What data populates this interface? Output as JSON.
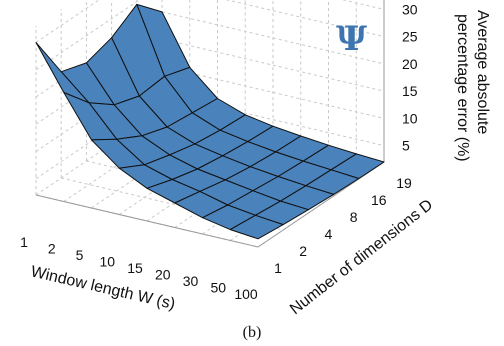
{
  "chart_data": {
    "type": "surface",
    "x_axis": {
      "label": "Window length W (s)",
      "ticks": [
        "1",
        "2",
        "5",
        "10",
        "15",
        "20",
        "30",
        "50",
        "100"
      ]
    },
    "y_axis": {
      "label": "Number of dimensions D",
      "ticks": [
        "1",
        "2",
        "4",
        "8",
        "16",
        "19"
      ]
    },
    "z_axis": {
      "label": "Average absolute percentage error (%)",
      "ticks": [
        "5",
        "10",
        "15",
        "20",
        "25",
        "30"
      ],
      "range": [
        2,
        33
      ]
    },
    "z_values_by_dimension": [
      [
        30.0,
        22.0,
        14.5,
        10.5,
        8.0,
        6.5,
        5.0,
        4.0,
        3.5
      ],
      [
        21.5,
        17.0,
        11.5,
        8.0,
        6.5,
        5.5,
        4.2,
        3.5,
        3.0
      ],
      [
        20.0,
        13.5,
        9.0,
        6.7,
        5.3,
        4.5,
        3.7,
        3.0,
        2.6
      ],
      [
        21.5,
        12.0,
        7.5,
        5.6,
        4.6,
        3.8,
        3.2,
        2.7,
        2.3
      ],
      [
        24.5,
        12.5,
        7.0,
        5.0,
        4.1,
        3.4,
        2.9,
        2.5,
        2.1
      ],
      [
        20.0,
        11.0,
        6.5,
        4.7,
        3.8,
        3.2,
        2.7,
        2.3,
        2.0
      ]
    ],
    "surface_color": "#4a82bc",
    "grid": true
  },
  "annotation": {
    "symbol": "Ψ",
    "color": "#3d75b0"
  },
  "caption": "(b)"
}
